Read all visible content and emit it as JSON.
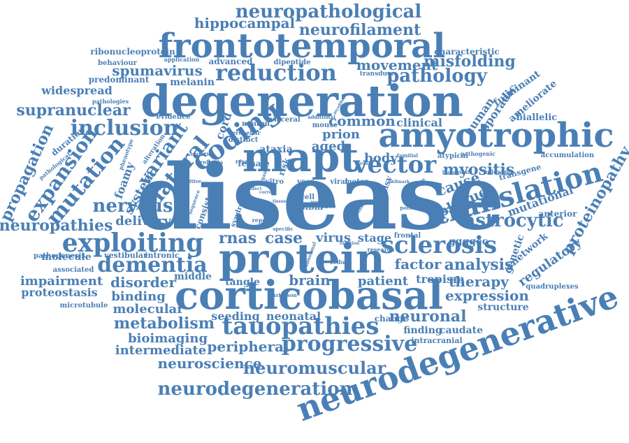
{
  "color": "#4a7fb5",
  "words": [
    "disease",
    "degeneration",
    "frontotemporal",
    "protein",
    "corticobasal",
    "neurodegenerative",
    "amyotrophic",
    "mapt",
    "tauopathies",
    "translation",
    "exploiting",
    "sclerosis",
    "reduction",
    "neuropathological",
    "coding",
    "vector",
    "inclusion",
    "dementia",
    "progressive",
    "neurodegeneration",
    "expansion",
    "mutation",
    "nervous",
    "lateral",
    "variant",
    "astrocytic",
    "neuropathies",
    "pathology",
    "supranuclear",
    "neurofilament",
    "hippocampal",
    "spumavirus",
    "propagation",
    "neuromuscular",
    "metabolism",
    "proteinopathy",
    "movement",
    "misfolding",
    "neuroscience",
    "peripheral",
    "neuronal",
    "expression",
    "analysis",
    "factor",
    "therapy",
    "bioimaging",
    "intermediate",
    "disorder",
    "molecular",
    "binding",
    "impairment",
    "delivery",
    "brain",
    "case",
    "rnas",
    "common",
    "prion",
    "aged",
    "myositis",
    "plaque",
    "cause",
    "body",
    "clinical",
    "human",
    "sporadic",
    "ameliorate",
    "fulminant",
    "biallelic",
    "regulatory",
    "network",
    "genetic",
    "mutational",
    "anterior",
    "accumulation",
    "transgene",
    "quadruplexes",
    "structure",
    "tropism",
    "patient",
    "stage",
    "virus",
    "ggggcc",
    "tangle",
    "seeding",
    "neonatal",
    "change",
    "finding",
    "caudate",
    "intracranial",
    "middle",
    "vestibular",
    "intronic",
    "associated",
    "pathogenesis",
    "proteostasis",
    "microtubule",
    "molecule",
    "widespread",
    "predominant",
    "melanin",
    "advanced",
    "dipeptide",
    "ribonucleoprotein",
    "behaviour",
    "application",
    "characteristic",
    "transduce",
    "pathologies",
    "evidence",
    "neuron",
    "visceral",
    "mouse",
    "additional",
    "cerebellar",
    "distinct",
    "ataxia",
    "female",
    "cord",
    "system",
    "foamy",
    "duration",
    "pathological",
    "alteration",
    "phenotype",
    "cognitive",
    "areflexia",
    "variation",
    "result",
    "consistent",
    "syndrome",
    "repeat",
    "sequence",
    "vitro",
    "cell",
    "year",
    "viral",
    "motor",
    "risk",
    "sibm",
    "late",
    "palsy",
    "familial",
    "feature",
    "potential",
    "observed",
    "atypical",
    "pathogenic",
    "biological",
    "following",
    "frontal",
    "research",
    "specific",
    "parkinson",
    "reduce",
    "abnormal",
    "tissue",
    "effect",
    "organ",
    "correct",
    "burden",
    "hallmark",
    "mood",
    "myofibers",
    "function",
    "link"
  ]
}
